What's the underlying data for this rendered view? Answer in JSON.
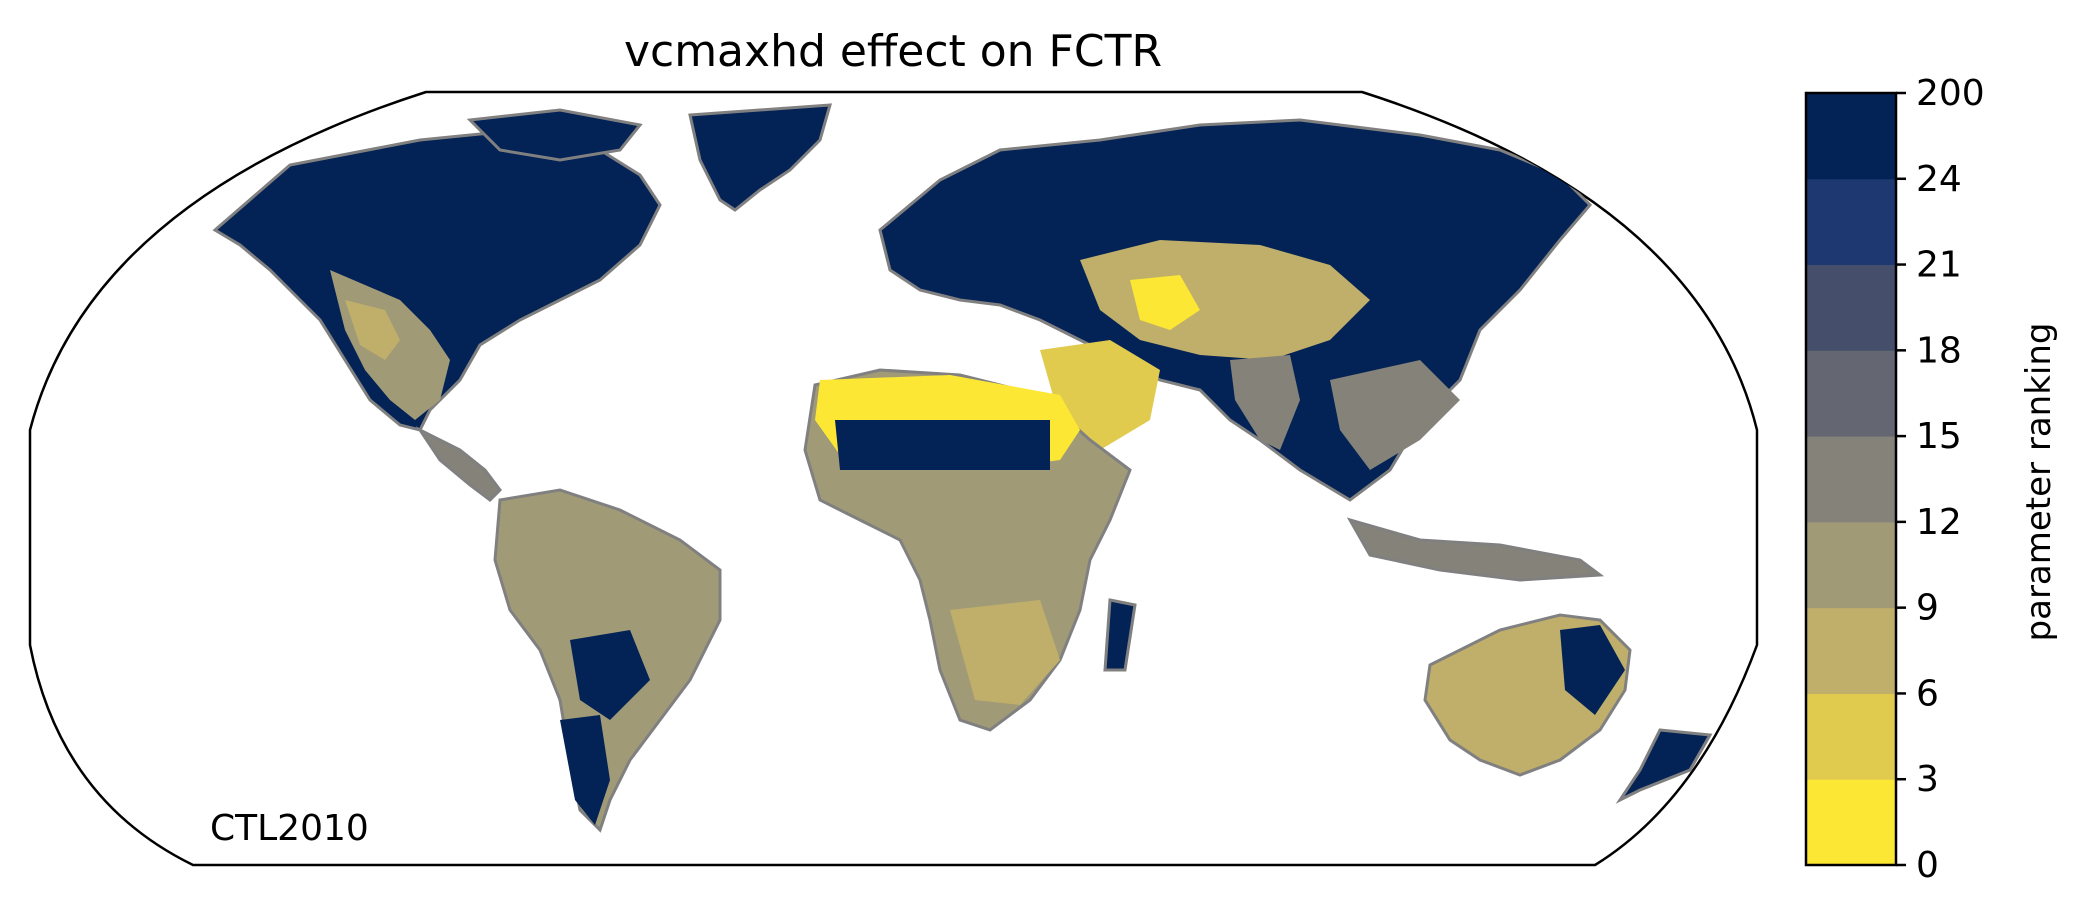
{
  "figure": {
    "title": "vcmaxhd effect on FCTR",
    "caption": "CTL2010"
  },
  "colorbar": {
    "label": "parameter ranking",
    "ticks": [
      "0",
      "3",
      "6",
      "9",
      "12",
      "15",
      "18",
      "21",
      "24",
      "200"
    ],
    "colors": [
      "#fde735",
      "#e0cb4f",
      "#bfaf6a",
      "#a19a77",
      "#858379",
      "#646772",
      "#454f6b",
      "#1e3971",
      "#032255"
    ]
  },
  "map": {
    "projection": "Robinson (global)",
    "coastline_color": "#808080",
    "continents": [
      "North America",
      "South America",
      "Europe",
      "Africa",
      "Asia",
      "Australia",
      "Greenland"
    ]
  }
}
